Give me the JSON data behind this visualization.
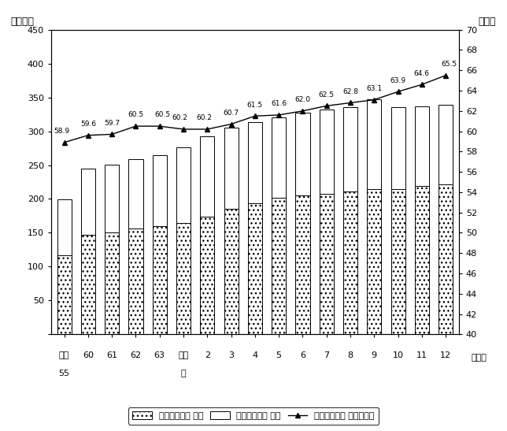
{
  "x_labels_line1": [
    "昭和",
    "60",
    "61",
    "62",
    "63",
    "平成",
    "2",
    "3",
    "4",
    "5",
    "6",
    "7",
    "8",
    "9",
    "10",
    "11",
    "12"
  ],
  "x_labels_line2": [
    "55",
    "",
    "",
    "",
    "",
    "元",
    "",
    "",
    "",
    "",
    "",
    "",
    "",
    "",
    "",
    "",
    ""
  ],
  "male_values": [
    199,
    245,
    251,
    259,
    265,
    276,
    292,
    305,
    313,
    320,
    328,
    332,
    336,
    347,
    336,
    337,
    339
  ],
  "female_values": [
    117,
    147,
    151,
    156,
    160,
    165,
    174,
    185,
    194,
    202,
    205,
    207,
    211,
    214,
    215,
    219,
    222
  ],
  "ratio_values": [
    58.9,
    59.6,
    59.7,
    60.5,
    60.5,
    60.2,
    60.2,
    60.7,
    61.5,
    61.6,
    62.0,
    62.5,
    62.8,
    63.1,
    63.9,
    64.6,
    65.5
  ],
  "ylabel_left": "（千円）",
  "ylabel_right": "（％）",
  "xlabel": "（年）",
  "ylim_left": [
    0,
    450
  ],
  "ylim_right": [
    40,
    70
  ],
  "yticks_left": [
    0,
    50,
    100,
    150,
    200,
    250,
    300,
    350,
    400,
    450
  ],
  "yticks_right": [
    40,
    42,
    44,
    46,
    48,
    50,
    52,
    54,
    56,
    58,
    60,
    62,
    64,
    66,
    68,
    70
  ],
  "legend_female": "所定内給与額 女性",
  "legend_male": "所定内給与額 男性",
  "legend_ratio": "所定内給与額 男女間格差",
  "bg_color": "#ffffff"
}
